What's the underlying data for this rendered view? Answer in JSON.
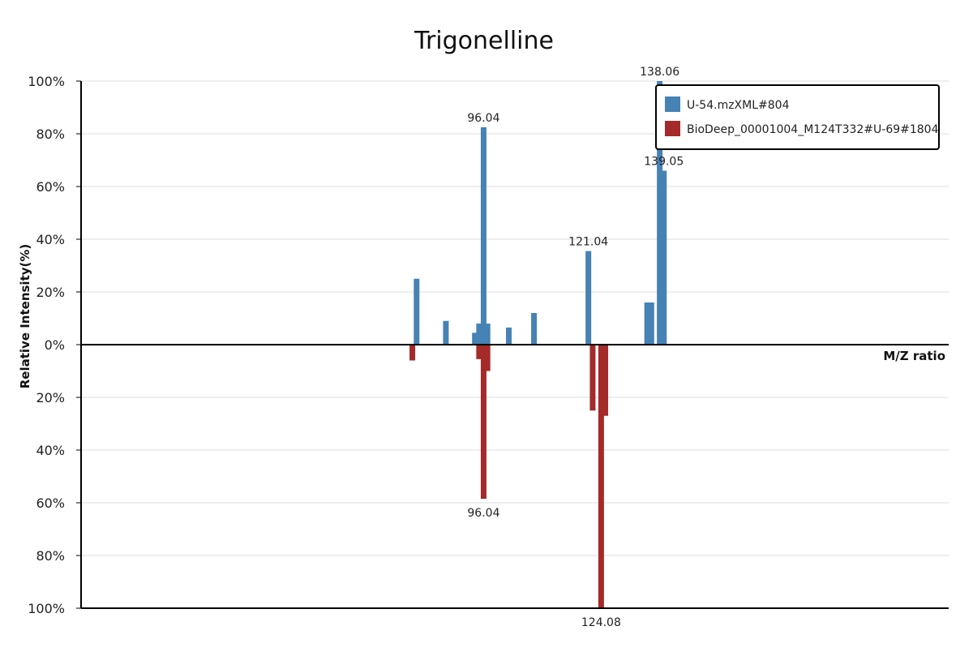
{
  "chart_data": {
    "type": "bar",
    "title": "Trigonelline",
    "xlabel": "M/Z ratio",
    "ylabel": "Relative Intensity(%)",
    "grid": true,
    "legend_position": "top-right",
    "x_range": [
      0,
      207
    ],
    "y_range": [
      -100,
      100
    ],
    "y_ticks": [
      {
        "value": 100,
        "label": "100%"
      },
      {
        "value": 80,
        "label": "80%"
      },
      {
        "value": 60,
        "label": "60%"
      },
      {
        "value": 40,
        "label": "40%"
      },
      {
        "value": 20,
        "label": "20%"
      },
      {
        "value": 0,
        "label": "0%"
      },
      {
        "value": -20,
        "label": "20%"
      },
      {
        "value": -40,
        "label": "40%"
      },
      {
        "value": -60,
        "label": "60%"
      },
      {
        "value": -80,
        "label": "80%"
      },
      {
        "value": -100,
        "label": "100%"
      }
    ],
    "series": [
      {
        "name": "U-54.mzXML#804",
        "color": "#4682b4",
        "direction": "up",
        "peaks": [
          {
            "mz": 80.05,
            "intensity": 25
          },
          {
            "mz": 87.04,
            "intensity": 9
          },
          {
            "mz": 93.96,
            "intensity": 4.5
          },
          {
            "mz": 94.96,
            "intensity": 8
          },
          {
            "mz": 96.04,
            "intensity": 82.5,
            "label": "96.04"
          },
          {
            "mz": 96.96,
            "intensity": 8
          },
          {
            "mz": 102.05,
            "intensity": 6.5
          },
          {
            "mz": 108.06,
            "intensity": 12
          },
          {
            "mz": 121.04,
            "intensity": 35.5,
            "label": "121.04"
          },
          {
            "mz": 135.06,
            "intensity": 16
          },
          {
            "mz": 136.06,
            "intensity": 16
          },
          {
            "mz": 138.06,
            "intensity": 100,
            "label": "138.06"
          },
          {
            "mz": 139.05,
            "intensity": 66,
            "label": "139.05"
          }
        ]
      },
      {
        "name": "BioDeep_00001004_M124T332#U-69#1804",
        "color": "#a52a2a",
        "direction": "down",
        "peaks": [
          {
            "mz": 79.04,
            "intensity": 6
          },
          {
            "mz": 94.96,
            "intensity": 5.5
          },
          {
            "mz": 96.04,
            "intensity": 58.5,
            "label": "96.04"
          },
          {
            "mz": 96.96,
            "intensity": 10
          },
          {
            "mz": 122.06,
            "intensity": 25
          },
          {
            "mz": 124.08,
            "intensity": 100,
            "label": "124.08"
          },
          {
            "mz": 125.08,
            "intensity": 27
          }
        ]
      }
    ]
  }
}
